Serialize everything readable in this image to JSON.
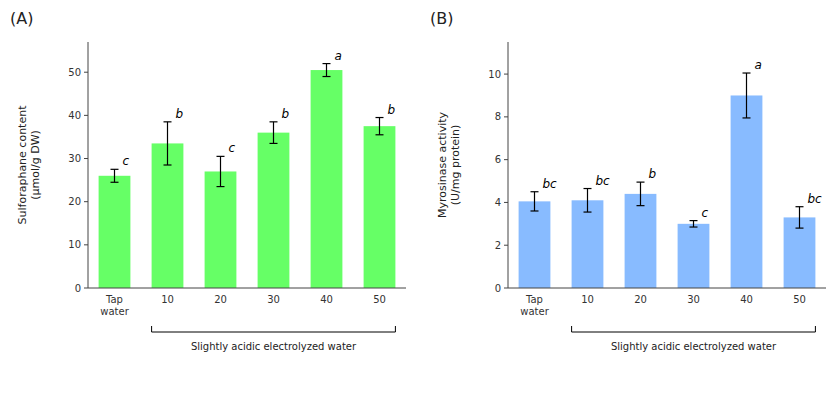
{
  "chart_data": [
    {
      "type": "bar",
      "title": "(A)",
      "categories": [
        "Tap\nwater",
        "10",
        "20",
        "30",
        "40",
        "50"
      ],
      "values": [
        26.0,
        33.5,
        27.0,
        36.0,
        50.5,
        37.5
      ],
      "errors": [
        1.5,
        5.0,
        3.5,
        2.5,
        1.5,
        2.0
      ],
      "letters": [
        "c",
        "b",
        "c",
        "b",
        "a",
        "b"
      ],
      "color": "#66FF66",
      "ylabel": "Sulforaphane content\n(μmol/g DW)",
      "xlabel": "Slightly acidic electrolyzed water",
      "ylim": [
        0,
        57
      ],
      "yticks": [
        0,
        10,
        20,
        30,
        40,
        50
      ],
      "grid": false
    },
    {
      "type": "bar",
      "title": "(B)",
      "categories": [
        "Tap\nwater",
        "10",
        "20",
        "30",
        "40",
        "50"
      ],
      "values": [
        4.05,
        4.1,
        4.4,
        3.0,
        9.0,
        3.3
      ],
      "errors": [
        0.45,
        0.55,
        0.55,
        0.15,
        1.05,
        0.5
      ],
      "letters": [
        "bc",
        "bc",
        "b",
        "c",
        "a",
        "bc"
      ],
      "color": "#88BBFF",
      "ylabel": "Myrosinase activity\n(U/mg protein)",
      "xlabel": "Slightly acidic electrolyzed water",
      "ylim": [
        0,
        11.5
      ],
      "yticks": [
        0,
        2,
        4,
        6,
        8,
        10
      ],
      "grid": false
    }
  ]
}
